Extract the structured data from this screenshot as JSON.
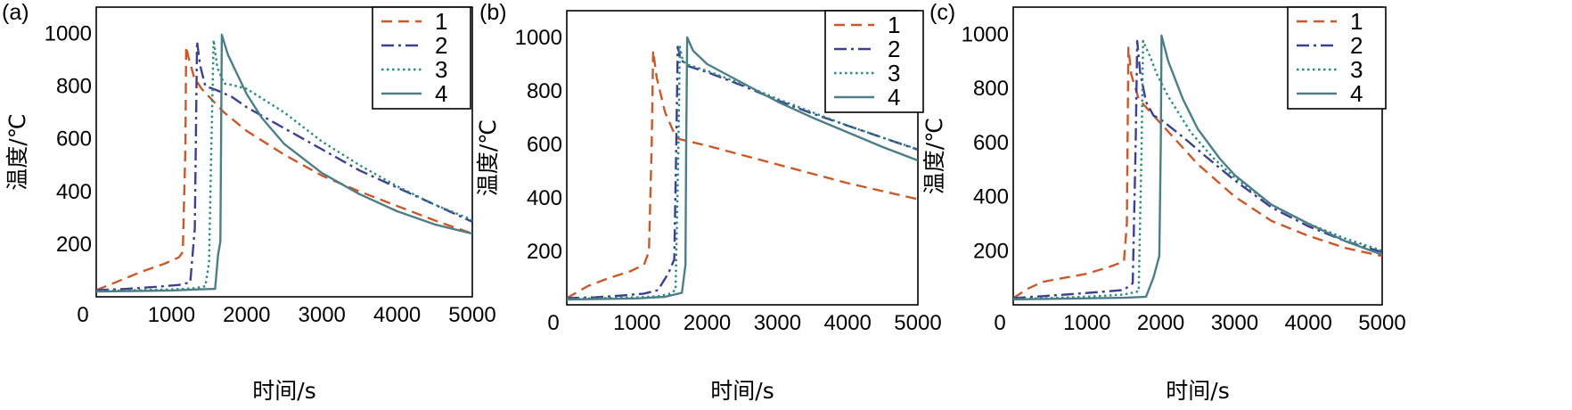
{
  "chart_data": [
    {
      "type": "line",
      "panel_label": "(a)",
      "xlabel": "时间/s",
      "ylabel": "温度/℃",
      "xlim": [
        0,
        5000
      ],
      "ylim": [
        0,
        1100
      ],
      "xticks": [
        0,
        1000,
        2000,
        3000,
        4000,
        5000
      ],
      "yticks": [
        200,
        400,
        600,
        800,
        1000
      ],
      "legend_position": "top-right",
      "series": [
        {
          "name": "1",
          "color": "#c8592c",
          "dash": "dash",
          "points": [
            [
              0,
              25
            ],
            [
              300,
              60
            ],
            [
              600,
              95
            ],
            [
              900,
              125
            ],
            [
              1100,
              150
            ],
            [
              1150,
              170
            ],
            [
              1185,
              560
            ],
            [
              1195,
              950
            ],
            [
              1230,
              905
            ],
            [
              1300,
              835
            ],
            [
              1400,
              790
            ],
            [
              1500,
              760
            ],
            [
              1700,
              700
            ],
            [
              2000,
              630
            ],
            [
              2500,
              540
            ],
            [
              3000,
              460
            ],
            [
              3500,
              400
            ],
            [
              4000,
              345
            ],
            [
              4500,
              290
            ],
            [
              5000,
              240
            ]
          ]
        },
        {
          "name": "2",
          "color": "#3d3f8f",
          "dash": "dashdot",
          "points": [
            [
              0,
              25
            ],
            [
              400,
              30
            ],
            [
              800,
              38
            ],
            [
              1100,
              45
            ],
            [
              1250,
              55
            ],
            [
              1310,
              260
            ],
            [
              1340,
              970
            ],
            [
              1380,
              880
            ],
            [
              1450,
              800
            ],
            [
              1500,
              795
            ],
            [
              1600,
              785
            ],
            [
              1800,
              760
            ],
            [
              2000,
              720
            ],
            [
              2500,
              640
            ],
            [
              3000,
              560
            ],
            [
              3500,
              480
            ],
            [
              4000,
              415
            ],
            [
              4500,
              350
            ],
            [
              5000,
              285
            ]
          ]
        },
        {
          "name": "3",
          "color": "#2d8a7e",
          "dash": "dot",
          "points": [
            [
              0,
              22
            ],
            [
              500,
              25
            ],
            [
              1000,
              28
            ],
            [
              1300,
              32
            ],
            [
              1450,
              40
            ],
            [
              1500,
              130
            ],
            [
              1530,
              560
            ],
            [
              1560,
              975
            ],
            [
              1610,
              870
            ],
            [
              1700,
              810
            ],
            [
              1800,
              805
            ],
            [
              2000,
              790
            ],
            [
              2500,
              700
            ],
            [
              3000,
              590
            ],
            [
              3500,
              500
            ],
            [
              4000,
              420
            ],
            [
              4500,
              350
            ],
            [
              5000,
              292
            ]
          ]
        },
        {
          "name": "4",
          "color": "#4d7e86",
          "dash": "solid",
          "points": [
            [
              0,
              20
            ],
            [
              500,
              22
            ],
            [
              1000,
              24
            ],
            [
              1350,
              28
            ],
            [
              1580,
              30
            ],
            [
              1620,
              160
            ],
            [
              1650,
              210
            ],
            [
              1660,
              600
            ],
            [
              1670,
              995
            ],
            [
              1750,
              920
            ],
            [
              1850,
              860
            ],
            [
              2000,
              770
            ],
            [
              2200,
              680
            ],
            [
              2500,
              580
            ],
            [
              3000,
              470
            ],
            [
              3500,
              390
            ],
            [
              4000,
              325
            ],
            [
              4500,
              275
            ],
            [
              5000,
              240
            ]
          ]
        }
      ]
    },
    {
      "type": "line",
      "panel_label": "(b)",
      "xlabel": "时间/s",
      "ylabel": "温度/℃",
      "xlim": [
        0,
        5000
      ],
      "ylim": [
        0,
        1100
      ],
      "xticks": [
        0,
        1000,
        2000,
        3000,
        4000,
        5000
      ],
      "yticks": [
        200,
        400,
        600,
        800,
        1000
      ],
      "legend_position": "top-right",
      "series": [
        {
          "name": "1",
          "color": "#c8592c",
          "dash": "dash",
          "points": [
            [
              0,
              25
            ],
            [
              300,
              70
            ],
            [
              600,
              100
            ],
            [
              900,
              125
            ],
            [
              1100,
              150
            ],
            [
              1170,
              200
            ],
            [
              1210,
              600
            ],
            [
              1230,
              950
            ],
            [
              1280,
              850
            ],
            [
              1400,
              720
            ],
            [
              1550,
              630
            ],
            [
              1600,
              620
            ],
            [
              2000,
              595
            ],
            [
              2500,
              560
            ],
            [
              3000,
              525
            ],
            [
              3500,
              490
            ],
            [
              4000,
              455
            ],
            [
              4500,
              425
            ],
            [
              5000,
              395
            ]
          ]
        },
        {
          "name": "2",
          "color": "#3d3f8f",
          "dash": "dashdot",
          "points": [
            [
              0,
              25
            ],
            [
              400,
              28
            ],
            [
              800,
              35
            ],
            [
              1100,
              42
            ],
            [
              1300,
              55
            ],
            [
              1450,
              120
            ],
            [
              1530,
              170
            ],
            [
              1560,
              600
            ],
            [
              1580,
              965
            ],
            [
              1620,
              920
            ],
            [
              1700,
              895
            ],
            [
              2000,
              870
            ],
            [
              2500,
              820
            ],
            [
              3000,
              765
            ],
            [
              3500,
              715
            ],
            [
              4000,
              670
            ],
            [
              4500,
              625
            ],
            [
              5000,
              580
            ]
          ]
        },
        {
          "name": "3",
          "color": "#2d8a7e",
          "dash": "dot",
          "points": [
            [
              0,
              22
            ],
            [
              500,
              25
            ],
            [
              1000,
              28
            ],
            [
              1300,
              32
            ],
            [
              1450,
              40
            ],
            [
              1550,
              55
            ],
            [
              1590,
              600
            ],
            [
              1610,
              965
            ],
            [
              1650,
              915
            ],
            [
              1700,
              900
            ],
            [
              2000,
              875
            ],
            [
              2500,
              825
            ],
            [
              3000,
              770
            ],
            [
              3500,
              720
            ],
            [
              4000,
              670
            ],
            [
              4500,
              625
            ],
            [
              5000,
              582
            ]
          ]
        },
        {
          "name": "4",
          "color": "#4d7e86",
          "dash": "solid",
          "points": [
            [
              0,
              20
            ],
            [
              500,
              22
            ],
            [
              1000,
              24
            ],
            [
              1400,
              30
            ],
            [
              1640,
              45
            ],
            [
              1690,
              150
            ],
            [
              1700,
              600
            ],
            [
              1715,
              1000
            ],
            [
              1800,
              950
            ],
            [
              2000,
              900
            ],
            [
              2500,
              830
            ],
            [
              3000,
              760
            ],
            [
              3500,
              700
            ],
            [
              4000,
              645
            ],
            [
              4500,
              590
            ],
            [
              5000,
              540
            ]
          ]
        }
      ]
    },
    {
      "type": "line",
      "panel_label": "(c)",
      "xlabel": "时间/s",
      "ylabel": "温度/℃",
      "xlim": [
        0,
        5000
      ],
      "ylim": [
        0,
        1100
      ],
      "xticks": [
        0,
        1000,
        2000,
        3000,
        4000,
        5000
      ],
      "yticks": [
        200,
        400,
        600,
        800,
        1000
      ],
      "legend_position": "top-right",
      "series": [
        {
          "name": "1",
          "color": "#c8592c",
          "dash": "dash",
          "points": [
            [
              0,
              25
            ],
            [
              200,
              60
            ],
            [
              400,
              85
            ],
            [
              700,
              100
            ],
            [
              1000,
              115
            ],
            [
              1300,
              140
            ],
            [
              1500,
              160
            ],
            [
              1540,
              300
            ],
            [
              1560,
              950
            ],
            [
              1600,
              850
            ],
            [
              1700,
              760
            ],
            [
              1800,
              730
            ],
            [
              2000,
              670
            ],
            [
              2500,
              520
            ],
            [
              3000,
              400
            ],
            [
              3500,
              310
            ],
            [
              4000,
              255
            ],
            [
              4500,
              210
            ],
            [
              5000,
              180
            ]
          ]
        },
        {
          "name": "2",
          "color": "#3d3f8f",
          "dash": "dashdot",
          "points": [
            [
              0,
              25
            ],
            [
              400,
              32
            ],
            [
              800,
              40
            ],
            [
              1200,
              48
            ],
            [
              1500,
              55
            ],
            [
              1620,
              80
            ],
            [
              1660,
              600
            ],
            [
              1680,
              975
            ],
            [
              1720,
              860
            ],
            [
              1800,
              750
            ],
            [
              1900,
              700
            ],
            [
              2000,
              685
            ],
            [
              2300,
              620
            ],
            [
              2600,
              550
            ],
            [
              3000,
              460
            ],
            [
              3500,
              360
            ],
            [
              4000,
              290
            ],
            [
              4500,
              235
            ],
            [
              5000,
              195
            ]
          ]
        },
        {
          "name": "3",
          "color": "#2d8a7e",
          "dash": "dot",
          "points": [
            [
              0,
              22
            ],
            [
              500,
              25
            ],
            [
              1000,
              30
            ],
            [
              1500,
              38
            ],
            [
              1700,
              50
            ],
            [
              1740,
              600
            ],
            [
              1760,
              975
            ],
            [
              1850,
              920
            ],
            [
              1950,
              850
            ],
            [
              2100,
              770
            ],
            [
              2400,
              640
            ],
            [
              2700,
              545
            ],
            [
              3000,
              470
            ],
            [
              3500,
              370
            ],
            [
              4000,
              300
            ],
            [
              4500,
              245
            ],
            [
              5000,
              200
            ]
          ]
        },
        {
          "name": "4",
          "color": "#4d7e86",
          "dash": "solid",
          "points": [
            [
              0,
              20
            ],
            [
              500,
              22
            ],
            [
              1000,
              24
            ],
            [
              1500,
              26
            ],
            [
              1800,
              30
            ],
            [
              1900,
              100
            ],
            [
              1980,
              180
            ],
            [
              2000,
              600
            ],
            [
              2010,
              995
            ],
            [
              2100,
              900
            ],
            [
              2300,
              760
            ],
            [
              2500,
              650
            ],
            [
              2800,
              540
            ],
            [
              3000,
              480
            ],
            [
              3500,
              370
            ],
            [
              4000,
              300
            ],
            [
              4500,
              235
            ],
            [
              5000,
              185
            ]
          ]
        }
      ]
    }
  ]
}
